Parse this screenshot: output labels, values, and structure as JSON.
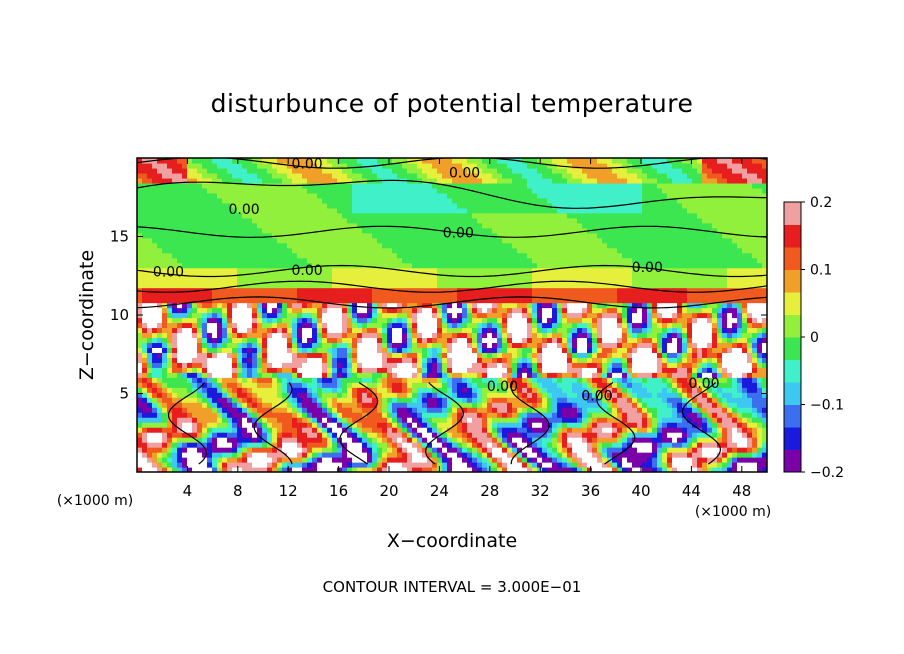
{
  "chart_data": {
    "type": "heatmap",
    "title": "disturbunce of potential temperature",
    "xlabel": "X−coordinate",
    "ylabel": "Z−coordinate",
    "x_unit": "(×1000 m)",
    "y_unit": "(×1000 m)",
    "xlim": [
      0,
      50
    ],
    "ylim": [
      0,
      20
    ],
    "x_ticks": [
      "4",
      "8",
      "12",
      "16",
      "20",
      "24",
      "28",
      "32",
      "36",
      "40",
      "44",
      "48"
    ],
    "y_ticks": [
      "5",
      "10",
      "15"
    ],
    "colorbar": {
      "range": [
        -0.2,
        0.2
      ],
      "tick_labels": [
        "0.2",
        "0.1",
        "0",
        "−0.1",
        "−0.2"
      ],
      "colors": [
        "#7a00a8",
        "#1a1adc",
        "#3c6ef0",
        "#3cc8f0",
        "#40f0c8",
        "#3ce650",
        "#90f03c",
        "#e6f03c",
        "#f0a028",
        "#f05a1e",
        "#e61e1e",
        "#f0a0a0"
      ]
    },
    "contour_labels": [
      "0.00",
      "0.00",
      "0.00",
      "0.00",
      "0.00",
      "0.00",
      "0.00",
      "0.00",
      "0.00",
      "0.00"
    ],
    "footer": "CONTOUR INTERVAL = 3.000E−01"
  }
}
